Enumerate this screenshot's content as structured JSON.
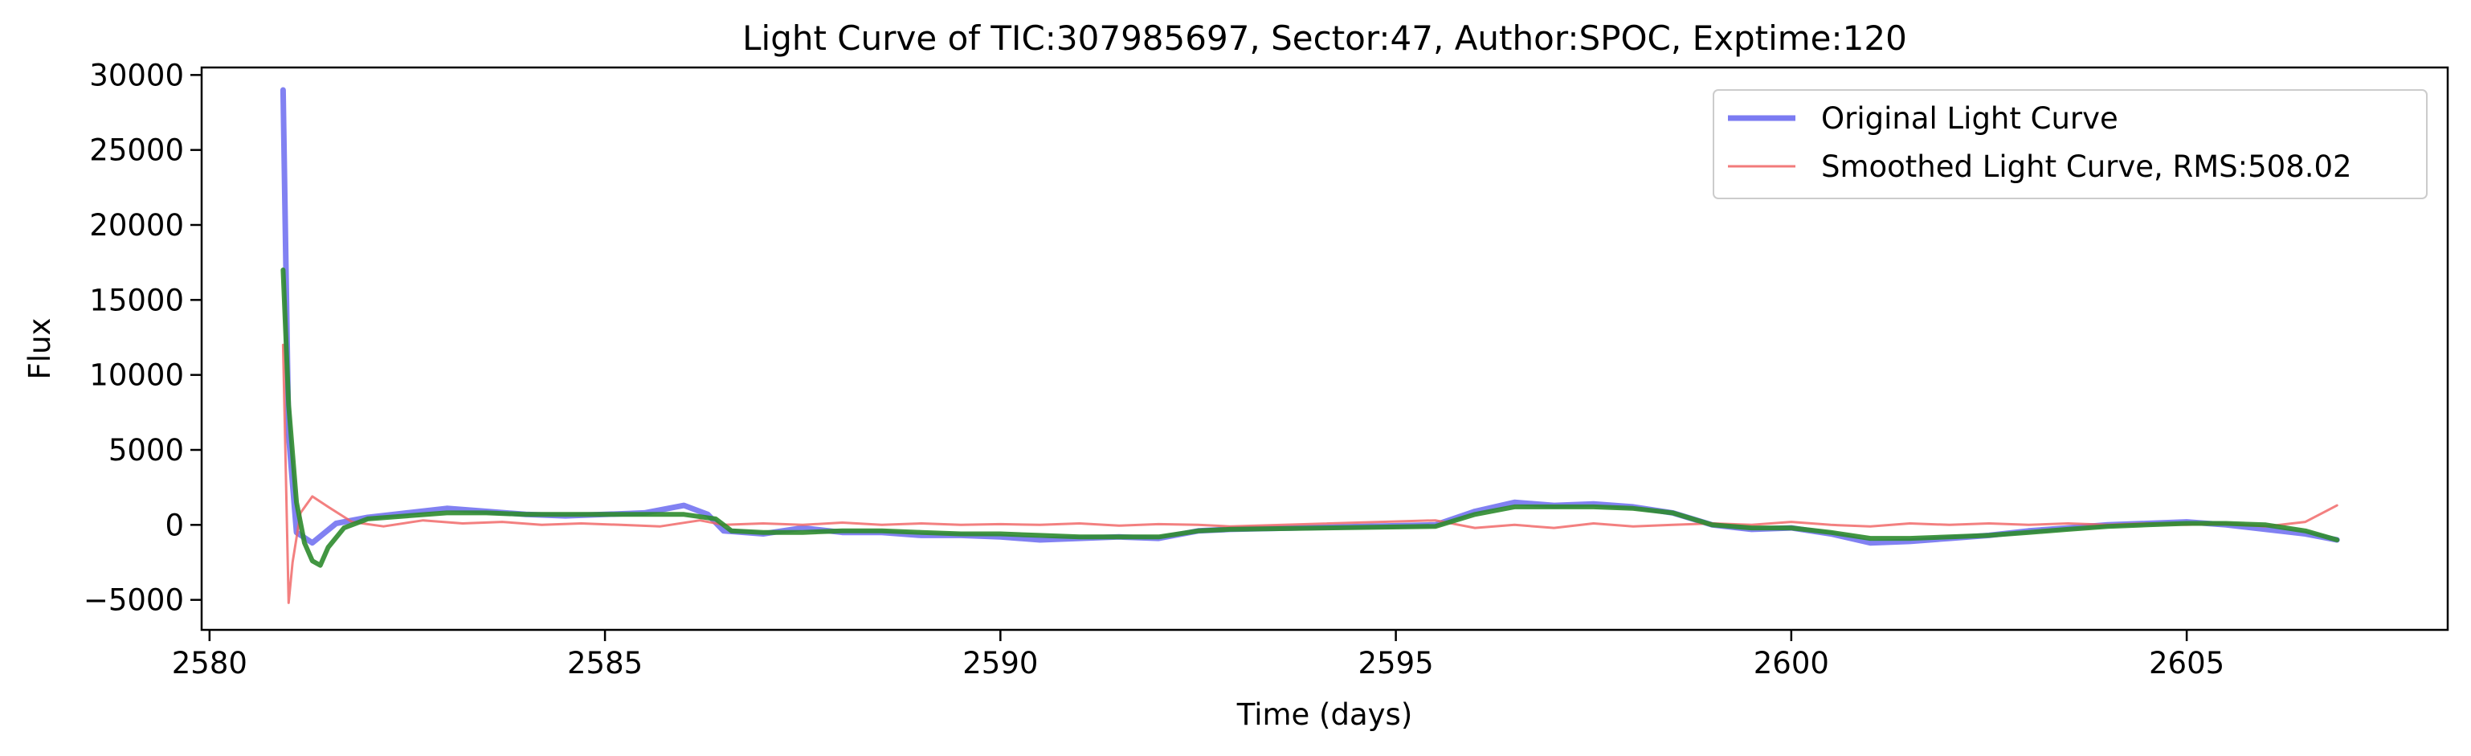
{
  "chart_data": {
    "type": "line",
    "title": "Light Curve of TIC:307985697, Sector:47, Author:SPOC, Exptime:120",
    "xlabel": "Time (days)",
    "ylabel": "Flux",
    "xlim": [
      2579.9,
      2608.3
    ],
    "ylim": [
      -7000,
      30500
    ],
    "xticks": [
      2580,
      2585,
      2590,
      2595,
      2600,
      2605
    ],
    "yticks": [
      -5000,
      0,
      5000,
      10000,
      15000,
      20000,
      25000,
      30000
    ],
    "grid": false,
    "legend_position": "top-right",
    "legend": [
      {
        "label": "Original Light Curve",
        "color": "#7b7bf2"
      },
      {
        "label": "Smoothed Light Curve, RMS:508.02",
        "color": "#f27b7b"
      }
    ],
    "series": [
      {
        "name": "Original Light Curve",
        "color": "#6b6bf0",
        "opacity": 0.85,
        "x": [
          2580.93,
          2581.0,
          2581.1,
          2581.3,
          2581.6,
          2582.0,
          2582.5,
          2583.0,
          2583.5,
          2584.0,
          2584.5,
          2585.0,
          2585.5,
          2586.0,
          2586.3,
          2586.5,
          2587.0,
          2587.5,
          2588.0,
          2588.5,
          2589.0,
          2589.5,
          2590.0,
          2590.5,
          2591.0,
          2591.5,
          2592.0,
          2592.5,
          2592.9,
          2595.5,
          2596.0,
          2596.5,
          2597.0,
          2597.5,
          2598.0,
          2598.5,
          2599.0,
          2599.5,
          2600.0,
          2600.5,
          2601.0,
          2601.5,
          2602.0,
          2602.5,
          2603.0,
          2603.5,
          2604.0,
          2604.5,
          2605.0,
          2605.5,
          2606.0,
          2606.5,
          2606.9
        ],
        "y": [
          29000,
          6000,
          -500,
          -1200,
          100,
          500,
          800,
          1100,
          900,
          700,
          600,
          700,
          800,
          1300,
          700,
          -400,
          -600,
          -200,
          -500,
          -500,
          -700,
          -700,
          -800,
          -1000,
          -900,
          -800,
          -900,
          -400,
          -300,
          0,
          900,
          1500,
          1300,
          1400,
          1200,
          800,
          0,
          -300,
          -200,
          -600,
          -1200,
          -1100,
          -900,
          -700,
          -400,
          -200,
          0,
          100,
          200,
          0,
          -300,
          -600,
          -1000
        ]
      },
      {
        "name": "Smoothed Light Curve, RMS:508.02",
        "color": "#f06060",
        "opacity": 0.8,
        "x": [
          2580.93,
          2581.0,
          2581.05,
          2581.15,
          2581.3,
          2581.5,
          2581.8,
          2582.2,
          2582.7,
          2583.2,
          2583.7,
          2584.2,
          2584.7,
          2585.2,
          2585.7,
          2586.2,
          2586.5,
          2587.0,
          2587.5,
          2588.0,
          2588.5,
          2589.0,
          2589.5,
          2590.0,
          2590.5,
          2591.0,
          2591.5,
          2592.0,
          2592.5,
          2592.9,
          2595.5,
          2596.0,
          2596.5,
          2597.0,
          2597.5,
          2598.0,
          2598.5,
          2599.0,
          2599.5,
          2600.0,
          2600.5,
          2601.0,
          2601.5,
          2602.0,
          2602.5,
          2603.0,
          2603.5,
          2604.0,
          2604.5,
          2605.0,
          2605.5,
          2606.0,
          2606.5,
          2606.9
        ],
        "y": [
          12000,
          -5200,
          -2500,
          800,
          1900,
          1200,
          200,
          -100,
          300,
          100,
          200,
          0,
          100,
          0,
          -100,
          300,
          0,
          100,
          0,
          150,
          0,
          100,
          0,
          50,
          0,
          100,
          -50,
          50,
          0,
          -100,
          300,
          -200,
          0,
          -200,
          100,
          -100,
          0,
          100,
          0,
          200,
          0,
          -100,
          100,
          0,
          100,
          0,
          100,
          0,
          100,
          0,
          100,
          -100,
          200,
          1300
        ]
      },
      {
        "color": "#2e8b2e",
        "opacity": 0.9,
        "x": [
          2580.93,
          2581.0,
          2581.1,
          2581.2,
          2581.3,
          2581.4,
          2581.5,
          2581.7,
          2582.0,
          2582.5,
          2583.0,
          2583.5,
          2584.0,
          2584.5,
          2585.0,
          2585.5,
          2586.0,
          2586.4,
          2586.6,
          2587.0,
          2587.5,
          2588.0,
          2588.5,
          2589.0,
          2589.5,
          2590.0,
          2590.5,
          2591.0,
          2591.5,
          2592.0,
          2592.5,
          2592.9,
          2595.5,
          2596.0,
          2596.5,
          2597.0,
          2597.5,
          2598.0,
          2598.5,
          2599.0,
          2599.5,
          2600.0,
          2600.5,
          2601.0,
          2601.5,
          2602.0,
          2602.5,
          2603.0,
          2603.5,
          2604.0,
          2604.5,
          2605.0,
          2605.5,
          2606.0,
          2606.5,
          2606.9
        ],
        "y": [
          17000,
          8000,
          1500,
          -1200,
          -2400,
          -2700,
          -1500,
          -200,
          400,
          600,
          800,
          800,
          700,
          700,
          700,
          700,
          700,
          400,
          -400,
          -500,
          -500,
          -400,
          -400,
          -500,
          -600,
          -600,
          -700,
          -800,
          -800,
          -800,
          -400,
          -300,
          -100,
          700,
          1200,
          1200,
          1200,
          1100,
          800,
          0,
          -200,
          -200,
          -500,
          -900,
          -900,
          -800,
          -700,
          -500,
          -300,
          -100,
          0,
          100,
          100,
          0,
          -400,
          -1000
        ]
      }
    ]
  }
}
